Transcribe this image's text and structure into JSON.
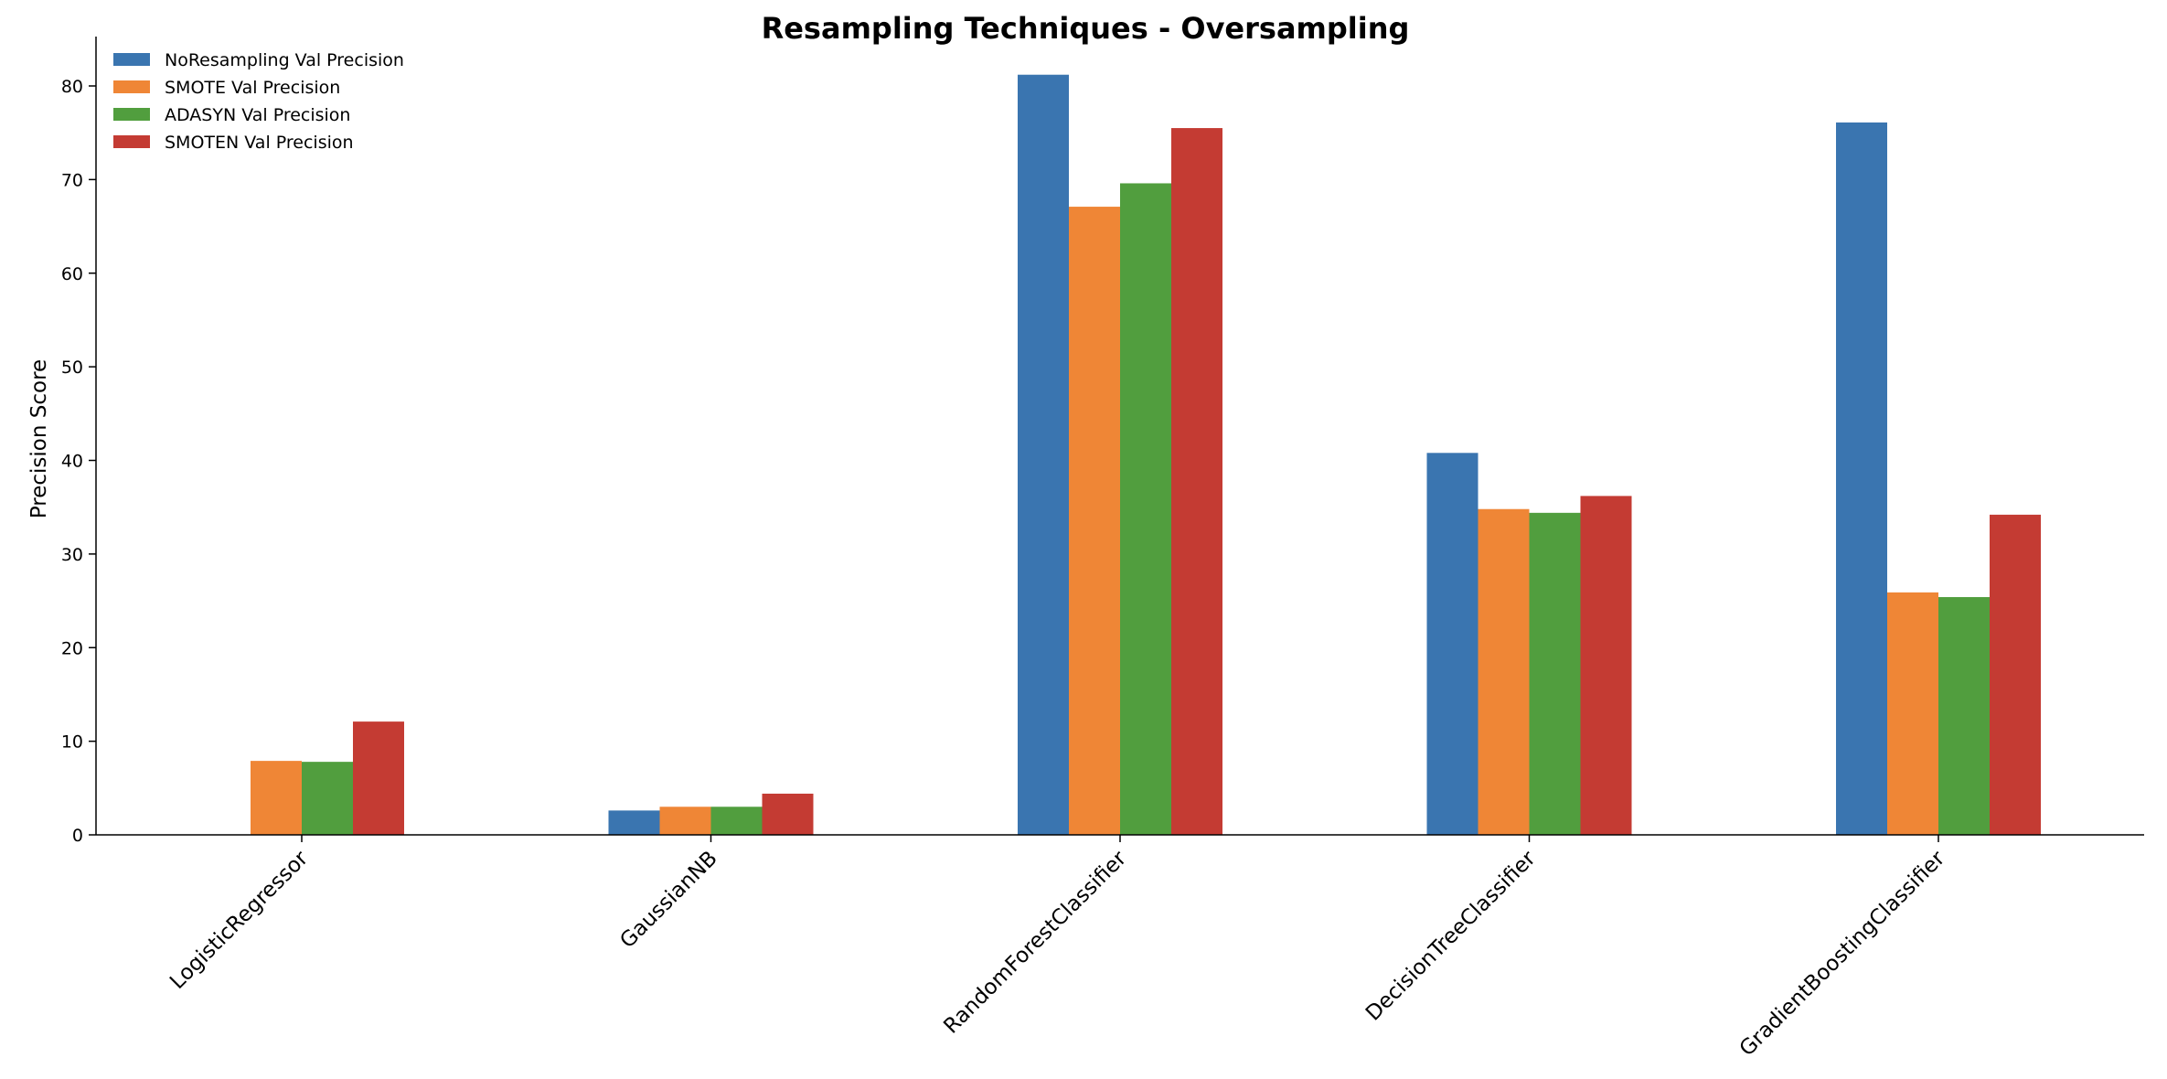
{
  "chart_data": {
    "type": "bar",
    "title": "Resampling Techniques - Oversampling",
    "xlabel": "",
    "ylabel": "Precision Score",
    "ylim": [
      0,
      85
    ],
    "yticks": [
      0,
      10,
      20,
      30,
      40,
      50,
      60,
      70,
      80
    ],
    "grid": false,
    "legend_position": "top-left",
    "categories": [
      "LogisticRegressor",
      "GaussianNB",
      "RandomForestClassifier",
      "DecisionTreeClassifier",
      "GradientBoostingClassifier"
    ],
    "series": [
      {
        "name": "NoResampling Val Precision",
        "color": "#3a75b0",
        "values": [
          0,
          2.6,
          81.2,
          40.8,
          76.1
        ]
      },
      {
        "name": "SMOTE Val Precision",
        "color": "#ef8636",
        "values": [
          7.9,
          3.0,
          67.1,
          34.8,
          25.9
        ]
      },
      {
        "name": "ADASYN Val Precision",
        "color": "#519e3e",
        "values": [
          7.8,
          3.0,
          69.6,
          34.4,
          25.4
        ]
      },
      {
        "name": "SMOTEN Val Precision",
        "color": "#c43b33",
        "values": [
          12.1,
          4.4,
          75.5,
          36.2,
          34.2
        ]
      }
    ]
  }
}
